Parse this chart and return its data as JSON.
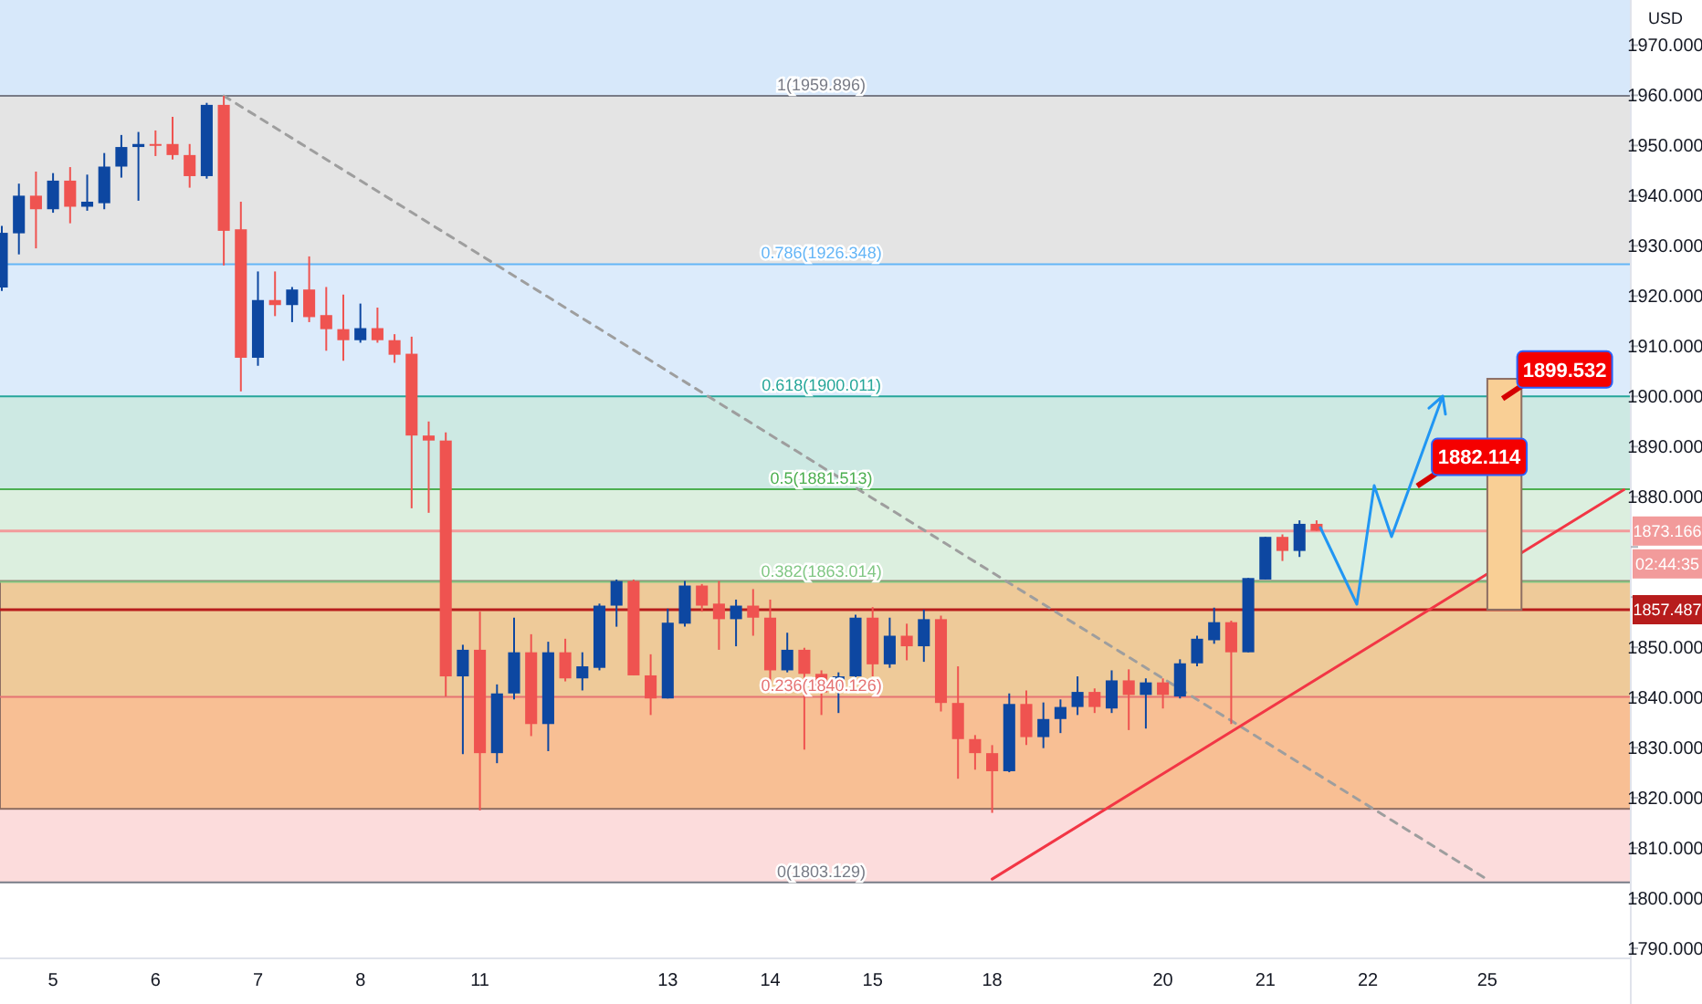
{
  "chart_data": {
    "type": "candlestick",
    "ylabel": "USD",
    "categories": [
      null,
      null,
      null,
      "5",
      null,
      null,
      null,
      null,
      null,
      "6",
      null,
      null,
      null,
      null,
      null,
      "7",
      null,
      null,
      null,
      null,
      null,
      "8",
      null,
      null,
      null,
      null,
      null,
      null,
      "11",
      null,
      null,
      null,
      null,
      null,
      null,
      null,
      null,
      null,
      null,
      "13",
      null,
      null,
      null,
      null,
      null,
      "14",
      null,
      null,
      null,
      null,
      null,
      "15",
      null,
      null,
      null,
      null,
      null,
      null,
      "18",
      null,
      null,
      null,
      null,
      null,
      null,
      null,
      null,
      null,
      "20",
      null,
      null,
      null,
      null,
      null,
      "21",
      null,
      null,
      null,
      null,
      null,
      "22",
      null,
      null,
      null,
      null,
      null,
      null,
      "25",
      null,
      null,
      null,
      null,
      null,
      null,
      null,
      null
    ],
    "ohlc": [
      [
        1921.7,
        1934,
        1921,
        1932.6
      ],
      [
        1932.5,
        1942.4,
        1928.3,
        1940
      ],
      [
        1940,
        1944.8,
        1929.5,
        1937.3
      ],
      [
        1937.3,
        1944.5,
        1936.6,
        1943
      ],
      [
        1943,
        1945.7,
        1934.5,
        1937.8
      ],
      [
        1937.8,
        1944.2,
        1937,
        1938.8
      ],
      [
        1938.5,
        1948.5,
        1937.3,
        1945.8
      ],
      [
        1945.8,
        1952.1,
        1943.6,
        1949.7
      ],
      [
        1949.7,
        1952.7,
        1939,
        1950.3
      ],
      [
        1950.3,
        1953,
        1947.9,
        1950
      ],
      [
        1950.3,
        1955.7,
        1947.2,
        1948.1
      ],
      [
        1948.1,
        1950.3,
        1941.6,
        1943.9
      ],
      [
        1943.9,
        1958.5,
        1943.4,
        1958.1
      ],
      [
        1958.1,
        1959.9,
        1926.1,
        1933
      ],
      [
        1933.3,
        1938.8,
        1901,
        1907.7
      ],
      [
        1907.7,
        1924.9,
        1906.1,
        1919.2
      ],
      [
        1919.2,
        1924.9,
        1916,
        1918.2
      ],
      [
        1918.2,
        1921.8,
        1914.8,
        1921.3
      ],
      [
        1921.3,
        1927.9,
        1914.8,
        1915.8
      ],
      [
        1916.2,
        1921.8,
        1909.1,
        1913.4
      ],
      [
        1913.4,
        1920.3,
        1907.1,
        1911.2
      ],
      [
        1911.2,
        1918.5,
        1910.7,
        1913.6
      ],
      [
        1913.6,
        1917.7,
        1910.7,
        1911.2
      ],
      [
        1911.2,
        1912.4,
        1906.7,
        1908.3
      ],
      [
        1908.5,
        1911.9,
        1877.7,
        1892.2
      ],
      [
        1892.2,
        1895,
        1876.8,
        1891.2
      ],
      [
        1891.2,
        1892.8,
        1840.2,
        1844.2
      ],
      [
        1844.2,
        1850.5,
        1828.7,
        1849.5
      ],
      [
        1849.5,
        1857.1,
        1817.5,
        1828.9
      ],
      [
        1828.9,
        1842.6,
        1826.9,
        1840.8
      ],
      [
        1840.8,
        1855.9,
        1839.6,
        1849
      ],
      [
        1849,
        1852.6,
        1832.3,
        1834.7
      ],
      [
        1834.7,
        1851.1,
        1829.3,
        1849
      ],
      [
        1849,
        1851.7,
        1843.2,
        1843.8
      ],
      [
        1843.8,
        1849,
        1841.4,
        1846.2
      ],
      [
        1845.9,
        1858.7,
        1845.4,
        1858.3
      ],
      [
        1858.3,
        1863.5,
        1854.1,
        1863.2
      ],
      [
        1863.2,
        1863.5,
        1844.4,
        1844.4
      ],
      [
        1844.4,
        1848.6,
        1836.5,
        1839.8
      ],
      [
        1839.8,
        1857.7,
        1839.8,
        1854.9
      ],
      [
        1854.7,
        1863.2,
        1854.1,
        1862.3
      ],
      [
        1862.3,
        1862.6,
        1857.1,
        1858.3
      ],
      [
        1858.7,
        1863.2,
        1849.5,
        1855.6
      ],
      [
        1855.6,
        1859.5,
        1850.2,
        1858.3
      ],
      [
        1858.3,
        1861.6,
        1852.3,
        1855.9
      ],
      [
        1855.9,
        1859.5,
        1842.6,
        1845.4
      ],
      [
        1845.4,
        1852.9,
        1845,
        1849.5
      ],
      [
        1849.5,
        1849.9,
        1829.6,
        1844.7
      ],
      [
        1844.7,
        1845.4,
        1836.5,
        1841
      ],
      [
        1841.4,
        1845,
        1836.9,
        1844.2
      ],
      [
        1844.2,
        1856.5,
        1843.8,
        1855.9
      ],
      [
        1855.9,
        1858,
        1844.2,
        1846.6
      ],
      [
        1846.6,
        1855.9,
        1845.9,
        1852.3
      ],
      [
        1852.3,
        1854.7,
        1847.4,
        1850.2
      ],
      [
        1850.2,
        1857.5,
        1847.1,
        1855.6
      ],
      [
        1855.6,
        1856.3,
        1837.2,
        1838.9
      ],
      [
        1838.9,
        1846.2,
        1823.8,
        1831.7
      ],
      [
        1831.7,
        1832.5,
        1825.6,
        1828.9
      ],
      [
        1828.9,
        1830.5,
        1817,
        1825.3
      ],
      [
        1825.3,
        1840.8,
        1825.1,
        1838.7
      ],
      [
        1838.7,
        1841.4,
        1830.5,
        1832.1
      ],
      [
        1832.1,
        1839,
        1829.9,
        1835.7
      ],
      [
        1835.7,
        1839.6,
        1832.9,
        1838.1
      ],
      [
        1838.1,
        1844.2,
        1836.5,
        1841.1
      ],
      [
        1841.1,
        1841.8,
        1836.9,
        1838.1
      ],
      [
        1837.8,
        1845.4,
        1836.9,
        1843.4
      ],
      [
        1843.4,
        1845.6,
        1833.5,
        1840.5
      ],
      [
        1840.5,
        1843.8,
        1833.8,
        1843
      ],
      [
        1843,
        1843.8,
        1837.8,
        1840.5
      ],
      [
        1840.2,
        1847.6,
        1839.8,
        1846.8
      ],
      [
        1846.8,
        1852.3,
        1846.2,
        1851.7
      ],
      [
        1851.4,
        1857.9,
        1850.7,
        1855
      ],
      [
        1855,
        1855.3,
        1834.7,
        1849
      ],
      [
        1849,
        1863.8,
        1849,
        1863.8
      ],
      [
        1863.5,
        1872,
        1863.5,
        1872
      ],
      [
        1872,
        1872.5,
        1867.2,
        1869.2
      ],
      [
        1869.2,
        1875.3,
        1868,
        1874.6
      ],
      [
        1874.6,
        1875.3,
        1873.2,
        1873.2
      ],
      null,
      null,
      null,
      null,
      null,
      null,
      null,
      null,
      null,
      null,
      null,
      null,
      null,
      null,
      null,
      null,
      null,
      null
    ],
    "series": [
      {
        "type": "line",
        "color": "#9e9e9e",
        "line_style": "dashed",
        "values": [
          null,
          null,
          null,
          null,
          null,
          null,
          null,
          null,
          null,
          null,
          null,
          null,
          null,
          1959.9,
          null,
          null,
          null,
          null,
          null,
          null,
          null,
          null,
          null,
          null,
          null,
          null,
          null,
          null,
          null,
          null,
          null,
          null,
          null,
          null,
          null,
          null,
          null,
          null,
          null,
          null,
          null,
          null,
          null,
          null,
          null,
          null,
          null,
          null,
          null,
          null,
          null,
          null,
          null,
          null,
          null,
          null,
          null,
          null,
          null,
          null,
          null,
          null,
          null,
          null,
          null,
          null,
          null,
          null,
          null,
          null,
          null,
          null,
          null,
          null,
          null,
          null,
          null,
          null,
          null,
          null,
          null,
          null,
          null,
          null,
          null,
          null,
          null,
          1803.7,
          null,
          null,
          null,
          null,
          null,
          null,
          null,
          null
        ]
      },
      {
        "type": "line",
        "color": "#f23645",
        "values": [
          null,
          null,
          null,
          null,
          null,
          null,
          null,
          null,
          null,
          null,
          null,
          null,
          null,
          null,
          null,
          null,
          null,
          null,
          null,
          null,
          null,
          null,
          null,
          null,
          null,
          null,
          null,
          null,
          null,
          null,
          null,
          null,
          null,
          null,
          null,
          null,
          null,
          null,
          null,
          null,
          null,
          null,
          null,
          null,
          null,
          null,
          null,
          null,
          null,
          null,
          null,
          null,
          null,
          null,
          null,
          null,
          null,
          null,
          1803.8,
          null,
          null,
          null,
          null,
          null,
          null,
          null,
          null,
          null,
          null,
          null,
          null,
          null,
          null,
          null,
          null,
          null,
          null,
          null,
          null,
          null,
          null,
          null,
          null,
          null,
          null,
          null,
          null,
          null,
          null,
          null,
          null,
          null,
          null,
          null,
          null,
          1881.4
        ]
      },
      {
        "type": "bar",
        "color": "#f9cf95",
        "base": [
          null,
          null,
          null,
          null,
          null,
          null,
          null,
          null,
          null,
          null,
          null,
          null,
          null,
          null,
          null,
          null,
          null,
          null,
          null,
          null,
          null,
          null,
          null,
          null,
          null,
          null,
          null,
          null,
          null,
          null,
          null,
          null,
          null,
          null,
          null,
          null,
          null,
          null,
          null,
          null,
          null,
          null,
          null,
          null,
          null,
          null,
          null,
          null,
          null,
          null,
          null,
          null,
          null,
          null,
          null,
          null,
          null,
          null,
          null,
          null,
          null,
          null,
          null,
          null,
          null,
          null,
          null,
          null,
          null,
          null,
          null,
          null,
          null,
          null,
          null,
          null,
          null,
          null,
          null,
          null,
          null,
          null,
          null,
          null,
          null,
          null,
          null,
          null,
          1857.5,
          null,
          null,
          null,
          null,
          null,
          null,
          null
        ],
        "values": [
          null,
          null,
          null,
          null,
          null,
          null,
          null,
          null,
          null,
          null,
          null,
          null,
          null,
          null,
          null,
          null,
          null,
          null,
          null,
          null,
          null,
          null,
          null,
          null,
          null,
          null,
          null,
          null,
          null,
          null,
          null,
          null,
          null,
          null,
          null,
          null,
          null,
          null,
          null,
          null,
          null,
          null,
          null,
          null,
          null,
          null,
          null,
          null,
          null,
          null,
          null,
          null,
          null,
          null,
          null,
          null,
          null,
          null,
          null,
          null,
          null,
          null,
          null,
          null,
          null,
          null,
          null,
          null,
          null,
          null,
          null,
          null,
          null,
          null,
          null,
          null,
          null,
          null,
          null,
          null,
          null,
          null,
          null,
          null,
          null,
          null,
          null,
          null,
          46,
          null,
          null,
          null,
          null,
          null,
          null,
          null
        ]
      }
    ],
    "bands": [
      {
        "axis": "y",
        "from": 1959.896,
        "to": 1979,
        "color": "#d7e8fa"
      },
      {
        "axis": "y",
        "from": 1926.348,
        "to": 1959.896,
        "color": "#e4e4e4"
      },
      {
        "axis": "y",
        "from": 1900.011,
        "to": 1926.348,
        "color": "#dcebfb"
      },
      {
        "axis": "y",
        "from": 1881.513,
        "to": 1900.011,
        "color": "#cde9e3"
      },
      {
        "axis": "y",
        "from": 1863.014,
        "to": 1881.513,
        "color": "#dcefdf"
      },
      {
        "axis": "y",
        "from": 1840.126,
        "to": 1863.014,
        "color": "#e7f3e7"
      },
      {
        "axis": "y",
        "from": 1803.129,
        "to": 1840.126,
        "color": "#fcdcdc"
      },
      {
        "axis": "y",
        "from": 1817.8,
        "to": 1863.2,
        "color": "#f4a85a"
      }
    ],
    "ref_lines": [
      {
        "axis": "y",
        "value": 1959.896,
        "label": "1(1959.896)",
        "color": "#787b86"
      },
      {
        "axis": "y",
        "value": 1926.348,
        "label": "0.786(1926.348)",
        "color": "#64b5f6"
      },
      {
        "axis": "y",
        "value": 1900.011,
        "label": "0.618(1900.011)",
        "color": "#26a69a"
      },
      {
        "axis": "y",
        "value": 1881.513,
        "label": "0.5(1881.513)",
        "color": "#4caf50"
      },
      {
        "axis": "y",
        "value": 1863.014,
        "label": "0.382(1863.014)",
        "color": "#81c784"
      },
      {
        "axis": "y",
        "value": 1840.126,
        "label": "0.236(1840.126)",
        "color": "#e57373"
      },
      {
        "axis": "y",
        "value": 1803.129,
        "label": "0(1803.129)",
        "color": "#787b86"
      },
      {
        "axis": "y",
        "value": 1873.166,
        "label": "1873.166",
        "color": "#f29b9b"
      },
      {
        "axis": "y",
        "value": 1857.487,
        "label": "1857.487",
        "color": "#b71c1c"
      }
    ],
    "annotations": [
      {
        "text": "1899.532",
        "y": 1899.532
      },
      {
        "text": "1882.114",
        "y": 1882.114
      },
      "02:44:35"
    ],
    "ylim": [
      1788,
      1979
    ],
    "yticks": [
      {
        "value": 1790,
        "label": "1790.000"
      },
      {
        "value": 1800,
        "label": "1800.000"
      },
      {
        "value": 1810,
        "label": "1810.000"
      },
      {
        "value": 1820,
        "label": "1820.000"
      },
      {
        "value": 1830,
        "label": "1830.000"
      },
      {
        "value": 1840,
        "label": "1840.000"
      },
      {
        "value": 1850,
        "label": "1850.000"
      },
      {
        "value": 1860,
        "label": null
      },
      {
        "value": 1870,
        "label": null
      },
      {
        "value": 1880,
        "label": "1880.000"
      },
      {
        "value": 1890,
        "label": "1890.000"
      },
      {
        "value": 1900,
        "label": "1900.000"
      },
      {
        "value": 1910,
        "label": "1910.000"
      },
      {
        "value": 1920,
        "label": "1920.000"
      },
      {
        "value": 1930,
        "label": "1930.000"
      },
      {
        "value": 1940,
        "label": "1940.000"
      },
      {
        "value": 1950,
        "label": "1950.000"
      },
      {
        "value": 1960,
        "label": "1960.000"
      },
      {
        "value": 1970,
        "label": "1970.000"
      }
    ]
  }
}
